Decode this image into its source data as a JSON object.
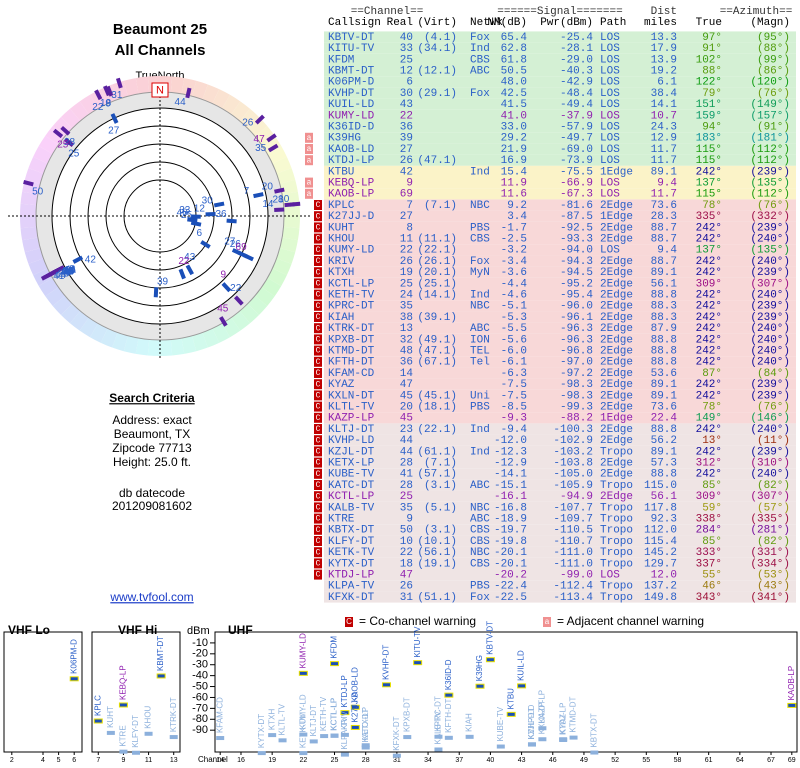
{
  "header": {
    "title": "Beaumont 25",
    "subtitle": "All Channels"
  },
  "polar": {
    "north_label": "TrueNorth",
    "north": "N"
  },
  "criteria": {
    "heading": "Search Criteria",
    "lines": [
      "Address: exact",
      "Beaumont, TX",
      "Zipcode 77713",
      "Height: 25.0 ft."
    ],
    "datecode_label": "db datecode",
    "datecode": "201209081602"
  },
  "link": "www.tvfool.com",
  "table": {
    "groups": [
      "==Channel==",
      "======Signal=======",
      "Dist",
      "==Azimuth=="
    ],
    "columns": [
      "Callsign",
      "Real",
      "(Virt)",
      "Netwk",
      "NM(dB)",
      "Pwr(dBm)",
      "Path",
      "miles",
      "True",
      "(Magn)"
    ],
    "rows": [
      {
        "c": [
          "KBTV-DT",
          "40",
          "(4.1)",
          "Fox",
          "65.4",
          "-25.4",
          "LOS",
          "13.3",
          "97°",
          "(95°)"
        ],
        "fg": "#2a5fc8",
        "bg": "#d4f0d4"
      },
      {
        "c": [
          "KITU-TV",
          "33",
          "(34.1)",
          "Ind",
          "62.8",
          "-28.1",
          "LOS",
          "17.9",
          "91°",
          "(88°)"
        ],
        "fg": "#2a5fc8",
        "bg": "#d4f0d4"
      },
      {
        "c": [
          "KFDM",
          "25",
          "",
          "CBS",
          "61.8",
          "-29.0",
          "LOS",
          "13.9",
          "102°",
          "(99°)"
        ],
        "fg": "#2a5fc8",
        "bg": "#d4f0d4"
      },
      {
        "c": [
          "KBMT-DT",
          "12",
          "(12.1)",
          "ABC",
          "50.5",
          "-40.3",
          "LOS",
          "19.2",
          "88°",
          "(86°)"
        ],
        "fg": "#2a5fc8",
        "bg": "#d4f0d4"
      },
      {
        "c": [
          "K06PM-D",
          "6",
          "",
          "",
          "48.0",
          "-42.9",
          "LOS",
          "6.1",
          "122°",
          "(120°)"
        ],
        "fg": "#2a5fc8",
        "bg": "#d4f0d4"
      },
      {
        "c": [
          "KVHP-DT",
          "30",
          "(29.1)",
          "Fox",
          "42.5",
          "-48.4",
          "LOS",
          "38.4",
          "79°",
          "(76°)"
        ],
        "fg": "#2a5fc8",
        "bg": "#d4f0d4"
      },
      {
        "c": [
          "KUIL-LD",
          "43",
          "",
          "",
          "41.5",
          "-49.4",
          "LOS",
          "14.1",
          "151°",
          "(149°)"
        ],
        "fg": "#2a5fc8",
        "bg": "#d4f0d4"
      },
      {
        "c": [
          "KUMY-LD",
          "22",
          "",
          "",
          "41.0",
          "-37.9",
          "LOS",
          "10.7",
          "159°",
          "(157°)"
        ],
        "fg": "#9020b0",
        "bg": "#d4f0d4"
      },
      {
        "c": [
          "K36ID-D",
          "36",
          "",
          "",
          "33.0",
          "-57.9",
          "LOS",
          "24.3",
          "94°",
          "(91°)"
        ],
        "fg": "#2a5fc8",
        "bg": "#d4f0d4"
      },
      {
        "c": [
          "K39HG",
          "39",
          "",
          "",
          "29.2",
          "-49.7",
          "LOS",
          "12.9",
          "183°",
          "(181°)"
        ],
        "fg": "#2a5fc8",
        "bg": "#d4f0d4",
        "warn": [
          "a"
        ]
      },
      {
        "c": [
          "KAOB-LD",
          "27",
          "",
          "",
          "21.9",
          "-69.0",
          "LOS",
          "11.7",
          "115°",
          "(112°)"
        ],
        "fg": "#2a5fc8",
        "bg": "#d4f0d4",
        "warn": [
          "a"
        ]
      },
      {
        "c": [
          "KTDJ-LP",
          "26",
          "(47.1)",
          "",
          "16.9",
          "-73.9",
          "LOS",
          "11.7",
          "115°",
          "(112°)"
        ],
        "fg": "#2a5fc8",
        "bg": "#d4f0d4",
        "warn": [
          "a"
        ]
      },
      {
        "c": [
          "KTBU",
          "42",
          "",
          "Ind",
          "15.4",
          "-75.5",
          "1Edge",
          "89.1",
          "242°",
          "(239°)"
        ],
        "fg": "#2a5fc8",
        "bg": "#fbf3c8"
      },
      {
        "c": [
          "KEBQ-LP",
          "9",
          "",
          "",
          "11.9",
          "-66.9",
          "LOS",
          "9.4",
          "137°",
          "(135°)"
        ],
        "fg": "#9020b0",
        "bg": "#fbf3c8",
        "warn": [
          "a"
        ]
      },
      {
        "c": [
          "KAOB-LP",
          "69",
          "",
          "",
          "11.6",
          "-67.3",
          "LOS",
          "11.7",
          "115°",
          "(112°)"
        ],
        "fg": "#9020b0",
        "bg": "#fbf3c8",
        "warn": [
          "a"
        ]
      },
      {
        "c": [
          "KPLC",
          "7",
          "(7.1)",
          "NBC",
          "9.2",
          "-81.6",
          "2Edge",
          "73.6",
          "78°",
          "(76°)"
        ],
        "fg": "#2a5fc8",
        "bg": "#f8d8d8",
        "warn": [
          "C"
        ]
      },
      {
        "c": [
          "K27JJ-D",
          "27",
          "",
          "",
          "3.4",
          "-87.5",
          "1Edge",
          "28.3",
          "335°",
          "(332°)"
        ],
        "fg": "#2a5fc8",
        "bg": "#f8d8d8",
        "warn": [
          "C"
        ]
      },
      {
        "c": [
          "KUHT",
          "8",
          "",
          "PBS",
          "-1.7",
          "-92.5",
          "2Edge",
          "88.7",
          "242°",
          "(239°)"
        ],
        "fg": "#2a5fc8",
        "bg": "#f8d8d8",
        "warn": [
          "C"
        ]
      },
      {
        "c": [
          "KHOU",
          "11",
          "(11.1)",
          "CBS",
          "-2.5",
          "-93.3",
          "2Edge",
          "88.7",
          "242°",
          "(240°)"
        ],
        "fg": "#2a5fc8",
        "bg": "#f8d8d8",
        "warn": [
          "C"
        ]
      },
      {
        "c": [
          "KUMY-LD",
          "22",
          "(22.1)",
          "",
          "-3.2",
          "-94.0",
          "LOS",
          "9.4",
          "137°",
          "(135°)"
        ],
        "fg": "#2a5fc8",
        "bg": "#f8d8d8",
        "warn": [
          "C"
        ]
      },
      {
        "c": [
          "KRIV",
          "26",
          "(26.1)",
          "Fox",
          "-3.4",
          "-94.3",
          "2Edge",
          "88.7",
          "242°",
          "(240°)"
        ],
        "fg": "#2a5fc8",
        "bg": "#f8d8d8",
        "warn": [
          "C"
        ]
      },
      {
        "c": [
          "KTXH",
          "19",
          "(20.1)",
          "MyN",
          "-3.6",
          "-94.5",
          "2Edge",
          "89.1",
          "242°",
          "(239°)"
        ],
        "fg": "#2a5fc8",
        "bg": "#f8d8d8",
        "warn": [
          "C"
        ]
      },
      {
        "c": [
          "KCTL-LP",
          "25",
          "(25.1)",
          "",
          "-4.4",
          "-95.2",
          "2Edge",
          "56.1",
          "309°",
          "(307°)"
        ],
        "fg": "#2a5fc8",
        "bg": "#f8d8d8",
        "warn": [
          "C"
        ]
      },
      {
        "c": [
          "KETH-TV",
          "24",
          "(14.1)",
          "Ind",
          "-4.6",
          "-95.4",
          "2Edge",
          "88.8",
          "242°",
          "(240°)"
        ],
        "fg": "#2a5fc8",
        "bg": "#f8d8d8",
        "warn": [
          "C"
        ]
      },
      {
        "c": [
          "KPRC-DT",
          "35",
          "",
          "NBC",
          "-5.1",
          "-96.0",
          "2Edge",
          "88.3",
          "242°",
          "(239°)"
        ],
        "fg": "#2a5fc8",
        "bg": "#f8d8d8",
        "warn": [
          "C"
        ]
      },
      {
        "c": [
          "KIAH",
          "38",
          "(39.1)",
          "",
          "-5.3",
          "-96.1",
          "2Edge",
          "88.3",
          "242°",
          "(239°)"
        ],
        "fg": "#2a5fc8",
        "bg": "#f8d8d8",
        "warn": [
          "C"
        ]
      },
      {
        "c": [
          "KTRK-DT",
          "13",
          "",
          "ABC",
          "-5.5",
          "-96.3",
          "2Edge",
          "87.9",
          "242°",
          "(240°)"
        ],
        "fg": "#2a5fc8",
        "bg": "#f8d8d8",
        "warn": [
          "C"
        ]
      },
      {
        "c": [
          "KPXB-DT",
          "32",
          "(49.1)",
          "ION",
          "-5.6",
          "-96.3",
          "2Edge",
          "88.8",
          "242°",
          "(240°)"
        ],
        "fg": "#2a5fc8",
        "bg": "#f8d8d8",
        "warn": [
          "C"
        ]
      },
      {
        "c": [
          "KTMD-DT",
          "48",
          "(47.1)",
          "TEL",
          "-6.0",
          "-96.8",
          "2Edge",
          "88.8",
          "242°",
          "(240°)"
        ],
        "fg": "#2a5fc8",
        "bg": "#f8d8d8",
        "warn": [
          "C"
        ]
      },
      {
        "c": [
          "KFTH-DT",
          "36",
          "(67.1)",
          "Tel",
          "-6.1",
          "-97.0",
          "2Edge",
          "88.8",
          "242°",
          "(240°)"
        ],
        "fg": "#2a5fc8",
        "bg": "#f8d8d8",
        "warn": [
          "C"
        ]
      },
      {
        "c": [
          "KFAM-CD",
          "14",
          "",
          "",
          "-6.3",
          "-97.2",
          "2Edge",
          "53.6",
          "87°",
          "(84°)"
        ],
        "fg": "#2a5fc8",
        "bg": "#f8d8d8",
        "warn": [
          "C"
        ]
      },
      {
        "c": [
          "KYAZ",
          "47",
          "",
          "",
          "-7.5",
          "-98.3",
          "2Edge",
          "89.1",
          "242°",
          "(239°)"
        ],
        "fg": "#2a5fc8",
        "bg": "#f8d8d8",
        "warn": [
          "C"
        ]
      },
      {
        "c": [
          "KXLN-DT",
          "45",
          "(45.1)",
          "Uni",
          "-7.5",
          "-98.3",
          "2Edge",
          "89.1",
          "242°",
          "(239°)"
        ],
        "fg": "#2a5fc8",
        "bg": "#f8d8d8",
        "warn": [
          "C"
        ]
      },
      {
        "c": [
          "KLTL-TV",
          "20",
          "(18.1)",
          "PBS",
          "-8.5",
          "-99.3",
          "2Edge",
          "73.6",
          "78°",
          "(76°)"
        ],
        "fg": "#2a5fc8",
        "bg": "#f8d8d8",
        "warn": [
          "C"
        ]
      },
      {
        "c": [
          "KAZP-LP",
          "45",
          "",
          "",
          "-9.3",
          "-88.2",
          "1Edge",
          "22.4",
          "149°",
          "(146°)"
        ],
        "fg": "#9020b0",
        "bg": "#f8d8d8",
        "warn": [
          "C"
        ]
      },
      {
        "c": [
          "KLTJ-DT",
          "23",
          "(22.1)",
          "Ind",
          "-9.4",
          "-100.3",
          "2Edge",
          "88.8",
          "242°",
          "(240°)"
        ],
        "fg": "#2a5fc8",
        "bg": "#efe4e4",
        "warn": [
          "C"
        ]
      },
      {
        "c": [
          "KVHP-LD",
          "44",
          "",
          "",
          "-12.0",
          "-102.9",
          "2Edge",
          "56.2",
          "13°",
          "(11°)"
        ],
        "fg": "#2a5fc8",
        "bg": "#efe4e4",
        "warn": [
          "C"
        ]
      },
      {
        "c": [
          "KZJL-DT",
          "44",
          "(61.1)",
          "Ind",
          "-12.3",
          "-103.2",
          "Tropo",
          "89.1",
          "242°",
          "(239°)"
        ],
        "fg": "#2a5fc8",
        "bg": "#efe4e4",
        "warn": [
          "C"
        ]
      },
      {
        "c": [
          "KETX-LP",
          "28",
          "(7.1)",
          "",
          "-12.9",
          "-103.8",
          "2Edge",
          "57.3",
          "312°",
          "(310°)"
        ],
        "fg": "#2a5fc8",
        "bg": "#efe4e4",
        "warn": [
          "C"
        ]
      },
      {
        "c": [
          "KUBE-TV",
          "41",
          "(57.1)",
          "",
          "-14.1",
          "-105.0",
          "2Edge",
          "88.8",
          "242°",
          "(240°)"
        ],
        "fg": "#2a5fc8",
        "bg": "#efe4e4",
        "warn": [
          "C"
        ]
      },
      {
        "c": [
          "KATC-DT",
          "28",
          "(3.1)",
          "ABC",
          "-15.1",
          "-105.9",
          "Tropo",
          "115.0",
          "85°",
          "(82°)"
        ],
        "fg": "#2a5fc8",
        "bg": "#efe4e4",
        "warn": [
          "C"
        ]
      },
      {
        "c": [
          "KCTL-LP",
          "25",
          "",
          "",
          "-16.1",
          "-94.9",
          "2Edge",
          "56.1",
          "309°",
          "(307°)"
        ],
        "fg": "#9020b0",
        "bg": "#efe4e4",
        "warn": [
          "C"
        ]
      },
      {
        "c": [
          "KALB-TV",
          "35",
          "(5.1)",
          "NBC",
          "-16.8",
          "-107.7",
          "Tropo",
          "117.8",
          "59°",
          "(57°)"
        ],
        "fg": "#2a5fc8",
        "bg": "#efe4e4",
        "warn": [
          "C"
        ]
      },
      {
        "c": [
          "KTRE",
          "9",
          "",
          "ABC",
          "-18.9",
          "-109.7",
          "Tropo",
          "92.3",
          "338°",
          "(335°)"
        ],
        "fg": "#2a5fc8",
        "bg": "#efe4e4",
        "warn": [
          "C"
        ]
      },
      {
        "c": [
          "KBTX-DT",
          "50",
          "(3.1)",
          "CBS",
          "-19.7",
          "-110.5",
          "Tropo",
          "112.0",
          "284°",
          "(281°)"
        ],
        "fg": "#2a5fc8",
        "bg": "#efe4e4",
        "warn": [
          "C"
        ]
      },
      {
        "c": [
          "KLFY-DT",
          "10",
          "(10.1)",
          "CBS",
          "-19.8",
          "-110.7",
          "Tropo",
          "115.4",
          "85°",
          "(82°)"
        ],
        "fg": "#2a5fc8",
        "bg": "#efe4e4",
        "warn": [
          "C"
        ]
      },
      {
        "c": [
          "KETK-TV",
          "22",
          "(56.1)",
          "NBC",
          "-20.1",
          "-111.0",
          "Tropo",
          "145.2",
          "333°",
          "(331°)"
        ],
        "fg": "#2a5fc8",
        "bg": "#efe4e4",
        "warn": [
          "C"
        ]
      },
      {
        "c": [
          "KYTX-DT",
          "18",
          "(19.1)",
          "CBS",
          "-20.1",
          "-111.0",
          "Tropo",
          "129.7",
          "337°",
          "(334°)"
        ],
        "fg": "#2a5fc8",
        "bg": "#efe4e4",
        "warn": [
          "C"
        ]
      },
      {
        "c": [
          "KTDJ-LP",
          "47",
          "",
          "",
          "-20.2",
          "-99.0",
          "LOS",
          "12.0",
          "55°",
          "(53°)"
        ],
        "fg": "#9020b0",
        "bg": "#efe4e4",
        "warn": [
          "C"
        ]
      },
      {
        "c": [
          "KLPA-TV",
          "26",
          "",
          "PBS",
          "-22.4",
          "-112.4",
          "Tropo",
          "137.2",
          "46°",
          "(43°)"
        ],
        "fg": "#2a5fc8",
        "bg": "#efe4e4"
      },
      {
        "c": [
          "KFXK-DT",
          "31",
          "(51.1)",
          "Fox",
          "-22.5",
          "-113.4",
          "Tropo",
          "149.8",
          "343°",
          "(341°)"
        ],
        "fg": "#2a5fc8",
        "bg": "#efe4e4"
      }
    ]
  },
  "spectrum": {
    "type": "spectrum",
    "y_label": "dBm",
    "ylim": [
      0,
      -110
    ],
    "yticks": [
      -10,
      -20,
      -30,
      -40,
      -50,
      -60,
      -70,
      -80,
      -90
    ],
    "x_label": "Channel",
    "panels": [
      {
        "title": "VHF Lo",
        "xlim": [
          1.5,
          6.5
        ],
        "xticks": [
          2,
          4,
          5,
          6
        ]
      },
      {
        "title": "VHF Hi",
        "xlim": [
          6.5,
          13.5
        ],
        "xticks": [
          7,
          9,
          11,
          13
        ]
      },
      {
        "title": "UHF",
        "xlim": [
          13.5,
          69.5
        ],
        "xticks": [
          14,
          16,
          19,
          22,
          25,
          28,
          31,
          34,
          37,
          40,
          43,
          46,
          49,
          52,
          55,
          58,
          61,
          64,
          67,
          69
        ]
      }
    ],
    "legend": [
      {
        "symbol": "C",
        "text": "= Co-channel warning"
      },
      {
        "symbol": "a",
        "text": "= Adjacent channel warning"
      }
    ]
  }
}
